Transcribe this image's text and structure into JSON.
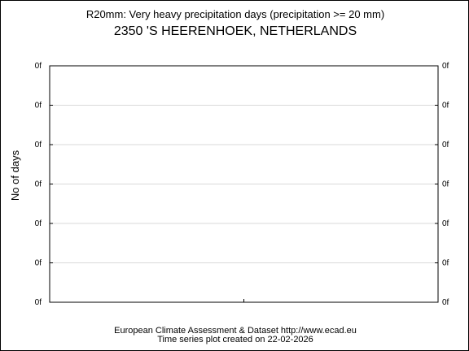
{
  "chart_data": {
    "type": "line",
    "title": "R20mm: Very heavy precipitation days (precipitation >= 20 mm)",
    "subtitle": "2350 'S HEERENHOEK, NETHERLANDS",
    "xlabel": "",
    "ylabel": "No of days",
    "y_tick_labels": [
      "0f",
      "0f",
      "0f",
      "0f",
      "0f",
      "0f",
      "0f"
    ],
    "y_ticks_mirrored_right": true,
    "grid": true,
    "series": [],
    "colors": {
      "grid": "#d9d9d9",
      "axis": "#000000",
      "background": "#ffffff"
    }
  },
  "footer": {
    "line1": "European Climate Assessment & Dataset  http://www.ecad.eu",
    "line2": "Time series plot created on 22-02-2026"
  }
}
